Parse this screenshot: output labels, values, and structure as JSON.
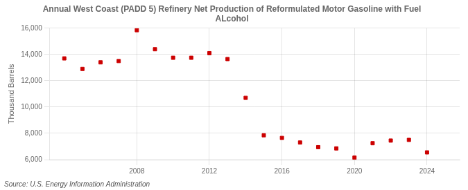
{
  "chart_data": {
    "type": "scatter",
    "title": "Annual West Coast (PADD 5) Refinery Net Production of Reformulated Motor Gasoline with Fuel\nALcohol",
    "ylabel": "Thousand Barrels",
    "source": "Source: U.S. Energy Information Administration",
    "x": [
      2004,
      2005,
      2006,
      2007,
      2008,
      2009,
      2010,
      2011,
      2012,
      2013,
      2014,
      2015,
      2016,
      2017,
      2018,
      2019,
      2020,
      2021,
      2022,
      2023,
      2024
    ],
    "values": [
      13700,
      12900,
      13400,
      13500,
      15850,
      14400,
      13750,
      13750,
      14100,
      13650,
      10700,
      7850,
      7650,
      7300,
      6950,
      6850,
      6150,
      7250,
      7450,
      7500,
      6550
    ],
    "color": "#cc0000",
    "marker": "square",
    "xlim": [
      2003.2,
      2025.8
    ],
    "xticks": [
      2008,
      2012,
      2016,
      2020,
      2024
    ],
    "ylim": [
      6000,
      16000
    ],
    "yticks": [
      {
        "value": 6000,
        "label": "6,000"
      },
      {
        "value": 8000,
        "label": "8,000"
      },
      {
        "value": 10000,
        "label": "10,000"
      },
      {
        "value": 12000,
        "label": "12,000"
      },
      {
        "value": 14000,
        "label": "14,000"
      },
      {
        "value": 16000,
        "label": "16,000"
      }
    ],
    "grid": true
  }
}
